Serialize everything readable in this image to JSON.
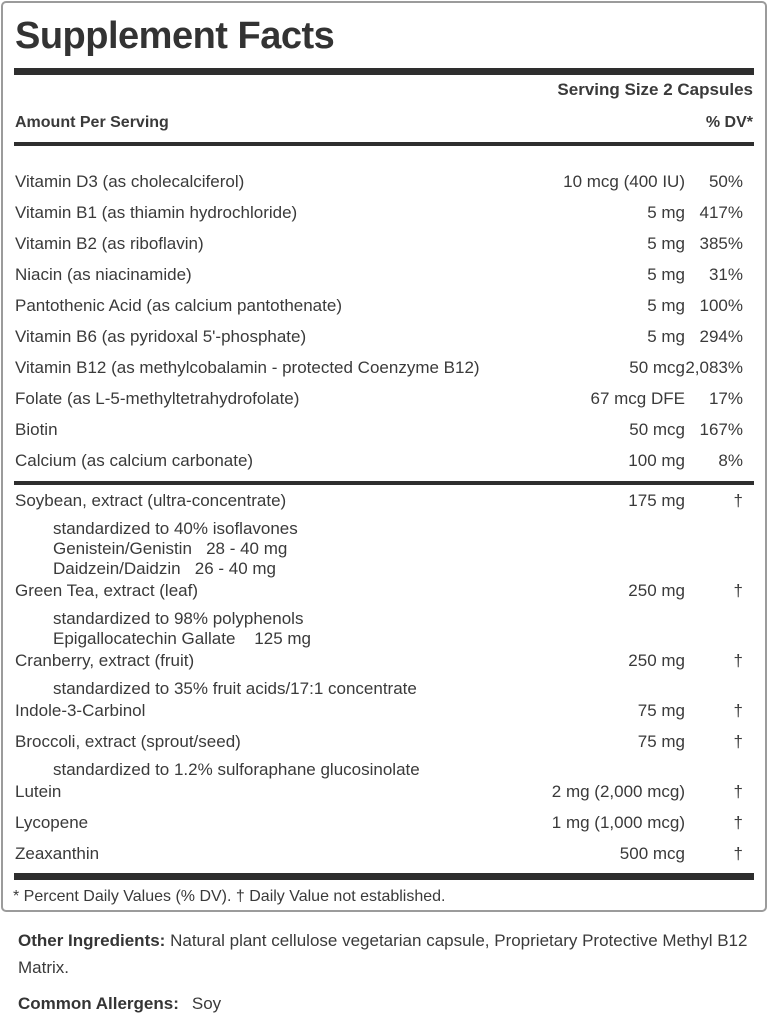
{
  "label": {
    "title": "Supplement Facts",
    "serving_size": "Serving Size 2 Capsules",
    "columns": {
      "amount_header": "Amount Per Serving",
      "dv_header": "% DV*"
    },
    "vitamins": [
      {
        "name": "Vitamin D3 (as cholecalciferol)",
        "amount": "10 mcg (400 IU)",
        "dv": "50%"
      },
      {
        "name": "Vitamin B1 (as thiamin hydrochloride)",
        "amount": "5 mg",
        "dv": "417%"
      },
      {
        "name": "Vitamin B2 (as riboflavin)",
        "amount": "5 mg",
        "dv": "385%"
      },
      {
        "name": "Niacin (as niacinamide)",
        "amount": "5 mg",
        "dv": "31%"
      },
      {
        "name": "Pantothenic Acid (as calcium pantothenate)",
        "amount": "5 mg",
        "dv": "100%"
      },
      {
        "name": "Vitamin B6 (as pyridoxal 5'-phosphate)",
        "amount": "5 mg",
        "dv": "294%"
      },
      {
        "name": "Vitamin B12 (as methylcobalamin - protected Coenzyme B12)",
        "amount": "50 mcg",
        "dv": "2,083%"
      },
      {
        "name": "Folate (as L-5-methyltetrahydrofolate)",
        "amount": "67 mcg DFE",
        "dv": "17%"
      },
      {
        "name": "Biotin",
        "amount": "50 mcg",
        "dv": "167%"
      },
      {
        "name": "Calcium (as calcium carbonate)",
        "amount": "100 mg",
        "dv": "8%"
      }
    ],
    "botanicals": [
      {
        "name": "Soybean, extract (ultra-concentrate)",
        "amount": "175 mg",
        "dv": "†",
        "subs": [
          "standardized to 40% isoflavones",
          "Genistein/Genistin   28 - 40 mg",
          "Daidzein/Daidzin   26 - 40 mg"
        ]
      },
      {
        "name": "Green Tea, extract (leaf)",
        "amount": "250 mg",
        "dv": "†",
        "subs": [
          "standardized to 98% polyphenols",
          "Epigallocatechin Gallate    125 mg"
        ]
      },
      {
        "name": "Cranberry, extract (fruit)",
        "amount": "250 mg",
        "dv": "†",
        "subs": [
          "standardized to 35% fruit acids/17:1 concentrate"
        ]
      },
      {
        "name": "Indole-3-Carbinol",
        "amount": "75 mg",
        "dv": "†"
      },
      {
        "name": "Broccoli, extract (sprout/seed)",
        "amount": "75 mg",
        "dv": "†",
        "subs": [
          "standardized to 1.2% sulforaphane glucosinolate"
        ]
      },
      {
        "name": "Lutein",
        "amount": "2 mg (2,000 mcg)",
        "dv": "†"
      },
      {
        "name": "Lycopene",
        "amount": "1 mg (1,000 mcg)",
        "dv": "†"
      },
      {
        "name": "Zeaxanthin",
        "amount": "500 mcg",
        "dv": "†"
      }
    ],
    "footnote": "* Percent Daily Values (% DV). † Daily Value not established."
  },
  "below": {
    "other_ingredients_label": "Other Ingredients:",
    "other_ingredients_text": "Natural plant cellulose vegetarian capsule, Proprietary Protective Methyl B12 Matrix.",
    "allergens_label": "Common Allergens:",
    "allergens_value": "Soy"
  },
  "colors": {
    "text": "#3a3a3a",
    "rule": "#2e2e2e",
    "border": "#9b9b9b",
    "background": "#ffffff"
  }
}
